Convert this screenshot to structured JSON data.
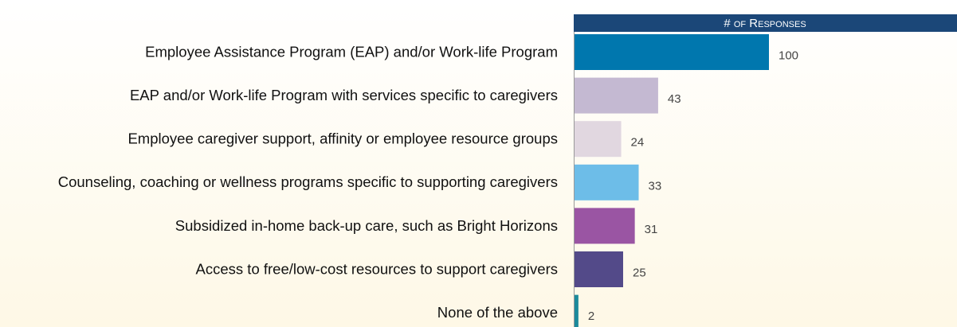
{
  "chart_data": {
    "type": "bar",
    "orientation": "horizontal",
    "header": "# of Responses",
    "categories": [
      "Employee Assistance Program (EAP) and/or Work-life Program",
      "EAP and/or Work-life Program with services specific to caregivers",
      "Employee caregiver support, affinity or employee resource groups",
      "Counseling, coaching or wellness programs specific to supporting caregivers",
      "Subsidized in-home back-up care, such as Bright Horizons",
      "Access to free/low-cost resources to support caregivers",
      "None of the above"
    ],
    "values": [
      100,
      43,
      24,
      33,
      31,
      25,
      2
    ],
    "colors": [
      "#0077ae",
      "#c4b9d2",
      "#e1d7e0",
      "#6dbde8",
      "#9a55a3",
      "#534a89",
      "#1b8a9b"
    ]
  }
}
